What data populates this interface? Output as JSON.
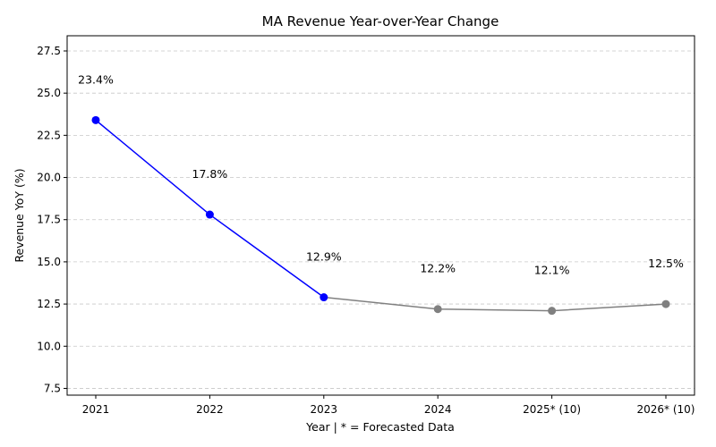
{
  "chart_data": {
    "type": "line",
    "title": "MA Revenue Year-over-Year Change",
    "xlabel": "Year | * = Forecasted Data",
    "ylabel": "Revenue YoY (%)",
    "categories": [
      "2021",
      "2022",
      "2023",
      "2024",
      "2025* (10)",
      "2026* (10)"
    ],
    "series": [
      {
        "values": [
          23.4,
          17.8,
          12.9,
          null,
          null,
          null
        ],
        "color": "#0000ff"
      },
      {
        "values": [
          null,
          null,
          12.9,
          12.2,
          12.1,
          12.5
        ],
        "color": "#808080"
      }
    ],
    "point_colors": [
      "#0000ff",
      "#0000ff",
      "#0000ff",
      "#808080",
      "#808080",
      "#808080"
    ],
    "data_labels": [
      "23.4%",
      "17.8%",
      "12.9%",
      "12.2%",
      "12.1%",
      "12.5%"
    ],
    "ylim": [
      7.1,
      28.4
    ],
    "yticks": [
      "7.5",
      "10.0",
      "12.5",
      "15.0",
      "17.5",
      "20.0",
      "22.5",
      "25.0",
      "27.5"
    ],
    "ytick_values": [
      7.5,
      10.0,
      12.5,
      15.0,
      17.5,
      20.0,
      22.5,
      25.0,
      27.5
    ],
    "grid": "y-dashed",
    "gridline_color": "#c8c8c8"
  }
}
